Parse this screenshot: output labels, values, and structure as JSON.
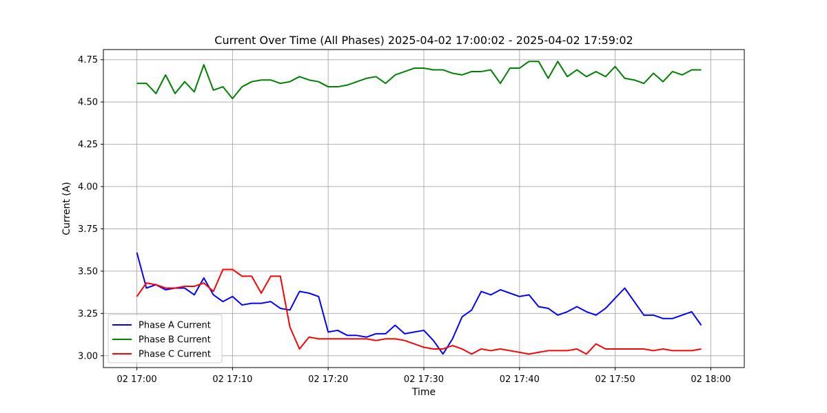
{
  "chart_data": {
    "type": "line",
    "title": "Current Over Time (All Phases) 2025-04-02 17:00:02 - 2025-04-02 17:59:02",
    "xlabel": "Time",
    "ylabel": "Current (A)",
    "x_ticks": [
      "02 17:00",
      "02 17:10",
      "02 17:20",
      "02 17:30",
      "02 17:40",
      "02 17:50",
      "02 18:00"
    ],
    "y_ticks": [
      "3.00",
      "3.25",
      "3.50",
      "3.75",
      "4.00",
      "4.25",
      "4.50",
      "4.75"
    ],
    "xlim": [
      -3.5,
      63.5
    ],
    "ylim": [
      2.93,
      4.81
    ],
    "grid": true,
    "legend_position": "lower-left",
    "x_minutes": [
      0,
      1,
      2,
      3,
      4,
      5,
      6,
      7,
      8,
      9,
      10,
      11,
      12,
      13,
      14,
      15,
      16,
      17,
      18,
      19,
      20,
      21,
      22,
      23,
      24,
      25,
      26,
      27,
      28,
      29,
      30,
      31,
      32,
      33,
      34,
      35,
      36,
      37,
      38,
      39,
      40,
      41,
      42,
      43,
      44,
      45,
      46,
      47,
      48,
      49,
      50,
      51,
      52,
      53,
      54,
      55,
      56,
      57,
      58,
      59
    ],
    "series": [
      {
        "name": "Phase A Current",
        "color": "#0000ff",
        "values": [
          3.61,
          3.4,
          3.42,
          3.39,
          3.4,
          3.4,
          3.36,
          3.46,
          3.36,
          3.32,
          3.35,
          3.3,
          3.31,
          3.31,
          3.32,
          3.28,
          3.27,
          3.38,
          3.37,
          3.35,
          3.14,
          3.15,
          3.12,
          3.12,
          3.11,
          3.13,
          3.13,
          3.18,
          3.13,
          3.14,
          3.15,
          3.09,
          3.01,
          3.1,
          3.23,
          3.27,
          3.38,
          3.36,
          3.39,
          3.37,
          3.35,
          3.36,
          3.29,
          3.28,
          3.24,
          3.26,
          3.29,
          3.26,
          3.24,
          3.28,
          3.34,
          3.4,
          3.32,
          3.24,
          3.24,
          3.22,
          3.22,
          3.24,
          3.26,
          3.18
        ]
      },
      {
        "name": "Phase B Current",
        "color": "#008000",
        "values": [
          4.61,
          4.61,
          4.55,
          4.66,
          4.55,
          4.62,
          4.56,
          4.72,
          4.57,
          4.59,
          4.52,
          4.59,
          4.62,
          4.63,
          4.63,
          4.61,
          4.62,
          4.65,
          4.63,
          4.62,
          4.59,
          4.59,
          4.6,
          4.62,
          4.64,
          4.65,
          4.61,
          4.66,
          4.68,
          4.7,
          4.7,
          4.69,
          4.69,
          4.67,
          4.66,
          4.68,
          4.68,
          4.69,
          4.61,
          4.7,
          4.7,
          4.74,
          4.74,
          4.64,
          4.74,
          4.65,
          4.69,
          4.65,
          4.68,
          4.65,
          4.71,
          4.64,
          4.63,
          4.61,
          4.67,
          4.62,
          4.68,
          4.66,
          4.69,
          4.69
        ]
      },
      {
        "name": "Phase C Current",
        "color": "#ff0000",
        "values": [
          3.35,
          3.43,
          3.42,
          3.4,
          3.4,
          3.41,
          3.41,
          3.43,
          3.38,
          3.51,
          3.51,
          3.47,
          3.47,
          3.37,
          3.47,
          3.47,
          3.17,
          3.04,
          3.11,
          3.1,
          3.1,
          3.1,
          3.1,
          3.1,
          3.1,
          3.09,
          3.1,
          3.1,
          3.09,
          3.07,
          3.05,
          3.04,
          3.04,
          3.06,
          3.04,
          3.01,
          3.04,
          3.03,
          3.04,
          3.03,
          3.02,
          3.01,
          3.02,
          3.03,
          3.03,
          3.03,
          3.04,
          3.01,
          3.07,
          3.04,
          3.04,
          3.04,
          3.04,
          3.04,
          3.03,
          3.04,
          3.03,
          3.03,
          3.03,
          3.04
        ]
      }
    ]
  }
}
